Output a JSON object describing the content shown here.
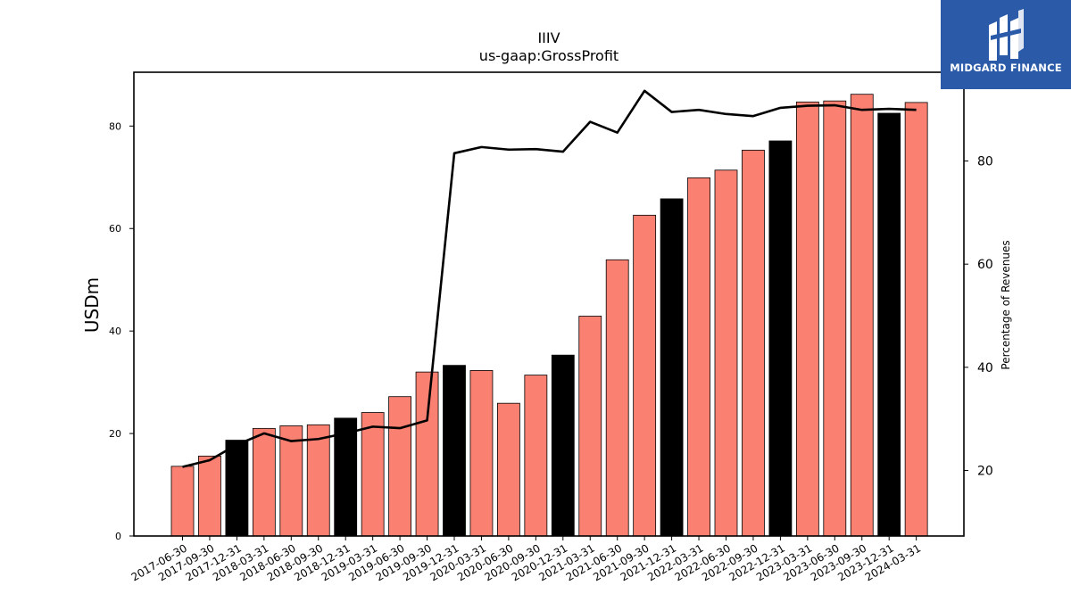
{
  "brand": {
    "name": "MIDGARD FINANCE",
    "background": "#2b5aa9"
  },
  "chart_data": {
    "type": "bar",
    "title": "IIIV",
    "subtitle": "us-gaap:GrossProfit",
    "ylabel": "USDm",
    "y2label": "Percentage of Revenues",
    "ylim": [
      0,
      90.5
    ],
    "y2lim": [
      7.3,
      97.2
    ],
    "yticks": [
      0,
      20,
      40,
      60,
      80
    ],
    "y2ticks": [
      20,
      40,
      60,
      80
    ],
    "categories": [
      "2017-06-30",
      "2017-09-30",
      "2017-12-31",
      "2018-03-31",
      "2018-06-30",
      "2018-09-30",
      "2018-12-31",
      "2019-03-31",
      "2019-06-30",
      "2019-09-30",
      "2019-12-31",
      "2020-03-31",
      "2020-06-30",
      "2020-09-30",
      "2020-12-31",
      "2021-03-31",
      "2021-06-30",
      "2021-09-30",
      "2021-12-31",
      "2022-03-31",
      "2022-06-30",
      "2022-09-30",
      "2022-12-31",
      "2023-03-31",
      "2023-06-30",
      "2023-09-30",
      "2023-12-31",
      "2024-03-31"
    ],
    "series": [
      {
        "kind": "bar",
        "values": [
          13.6,
          15.6,
          18.7,
          21.0,
          21.5,
          21.7,
          23.0,
          24.1,
          27.2,
          32.0,
          33.3,
          32.3,
          25.9,
          31.4,
          35.3,
          42.9,
          53.9,
          62.6,
          65.8,
          69.9,
          71.4,
          75.3,
          77.1,
          84.7,
          84.9,
          86.2,
          82.5,
          84.6
        ],
        "highlight": [
          false,
          false,
          true,
          false,
          false,
          false,
          true,
          false,
          false,
          false,
          true,
          false,
          false,
          false,
          true,
          false,
          false,
          false,
          true,
          false,
          false,
          false,
          true,
          false,
          false,
          false,
          true,
          false
        ]
      },
      {
        "kind": "line",
        "axis": "right",
        "values": [
          20.7,
          22.0,
          25.0,
          27.2,
          25.7,
          26.1,
          27.2,
          28.5,
          28.2,
          29.7,
          81.5,
          82.7,
          82.2,
          82.3,
          81.8,
          87.6,
          85.5,
          93.6,
          89.5,
          89.9,
          89.1,
          88.7,
          90.3,
          90.7,
          90.8,
          89.9,
          90.1,
          89.9
        ]
      }
    ],
    "colors": {
      "bar": "#fa8072",
      "bar_highlight": "#000000",
      "line": "#000000"
    },
    "grid": false
  }
}
